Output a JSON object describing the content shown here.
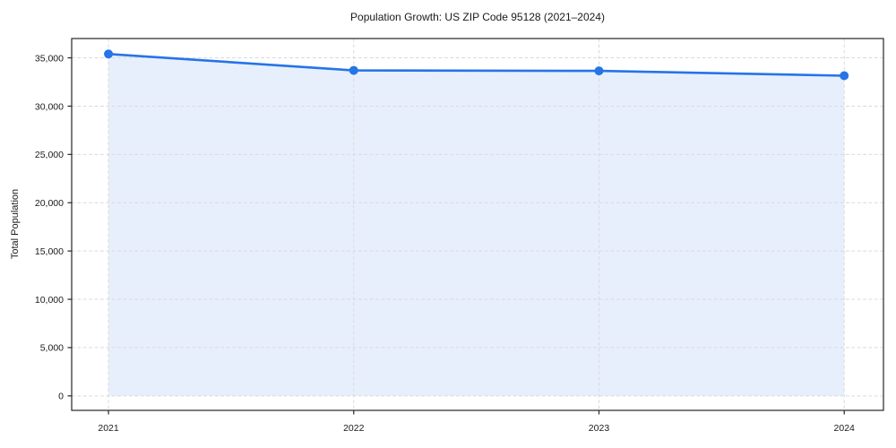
{
  "chart_data": {
    "type": "area",
    "title": "Population Growth: US ZIP Code 95128 (2021–2024)",
    "xlabel": "",
    "ylabel": "Total Population",
    "x": [
      2021,
      2022,
      2023,
      2024
    ],
    "series": [
      {
        "name": "Total Population",
        "values": [
          35400,
          33700,
          33650,
          33150
        ]
      }
    ],
    "xlim": [
      2020.85,
      2024.16
    ],
    "ylim": [
      -1500,
      37000
    ],
    "xticks": [
      2021,
      2022,
      2023,
      2024
    ],
    "xtick_labels": [
      "2021",
      "2022",
      "2023",
      "2024"
    ],
    "yticks": [
      0,
      5000,
      10000,
      15000,
      20000,
      25000,
      30000,
      35000
    ],
    "ytick_labels": [
      "0",
      "5,000",
      "10,000",
      "15,000",
      "20,000",
      "25,000",
      "30,000",
      "35,000"
    ],
    "grid": true,
    "grid_style": "dashed",
    "legend": false,
    "fill_baseline": 0,
    "colors": {
      "line": "#2574e8",
      "area_fill": "#e8effc",
      "grid": "#d9d9d9",
      "spine": "#262626",
      "tick_text": "#1a1a1a",
      "background": "#ffffff"
    },
    "marker": "circle",
    "marker_radius": 5,
    "line_width": 2.6
  }
}
